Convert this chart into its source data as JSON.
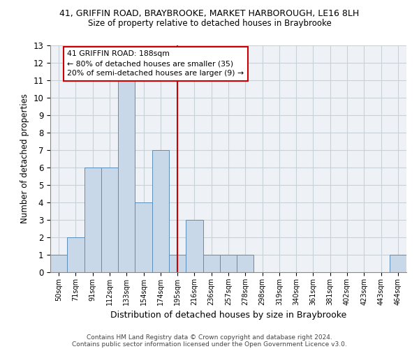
{
  "title_line1": "41, GRIFFIN ROAD, BRAYBROOKE, MARKET HARBOROUGH, LE16 8LH",
  "title_line2": "Size of property relative to detached houses in Braybrooke",
  "xlabel": "Distribution of detached houses by size in Braybrooke",
  "ylabel": "Number of detached properties",
  "categories": [
    "50sqm",
    "71sqm",
    "91sqm",
    "112sqm",
    "133sqm",
    "154sqm",
    "174sqm",
    "195sqm",
    "216sqm",
    "236sqm",
    "257sqm",
    "278sqm",
    "298sqm",
    "319sqm",
    "340sqm",
    "361sqm",
    "381sqm",
    "402sqm",
    "423sqm",
    "443sqm",
    "464sqm"
  ],
  "values": [
    1,
    2,
    6,
    6,
    11,
    4,
    7,
    1,
    3,
    1,
    1,
    1,
    0,
    0,
    0,
    0,
    0,
    0,
    0,
    0,
    1
  ],
  "bar_color": "#c8d8e8",
  "bar_edge_color": "#5b8db8",
  "vline_x": 7,
  "vline_color": "#cc0000",
  "annotation_text": "41 GRIFFIN ROAD: 188sqm\n← 80% of detached houses are smaller (35)\n20% of semi-detached houses are larger (9) →",
  "annotation_box_color": "#cc0000",
  "ylim": [
    0,
    13
  ],
  "yticks": [
    0,
    1,
    2,
    3,
    4,
    5,
    6,
    7,
    8,
    9,
    10,
    11,
    12,
    13
  ],
  "grid_color": "#c8d0d8",
  "bg_color": "#eef2f6",
  "footnote_line1": "Contains HM Land Registry data © Crown copyright and database right 2024.",
  "footnote_line2": "Contains public sector information licensed under the Open Government Licence v3.0."
}
